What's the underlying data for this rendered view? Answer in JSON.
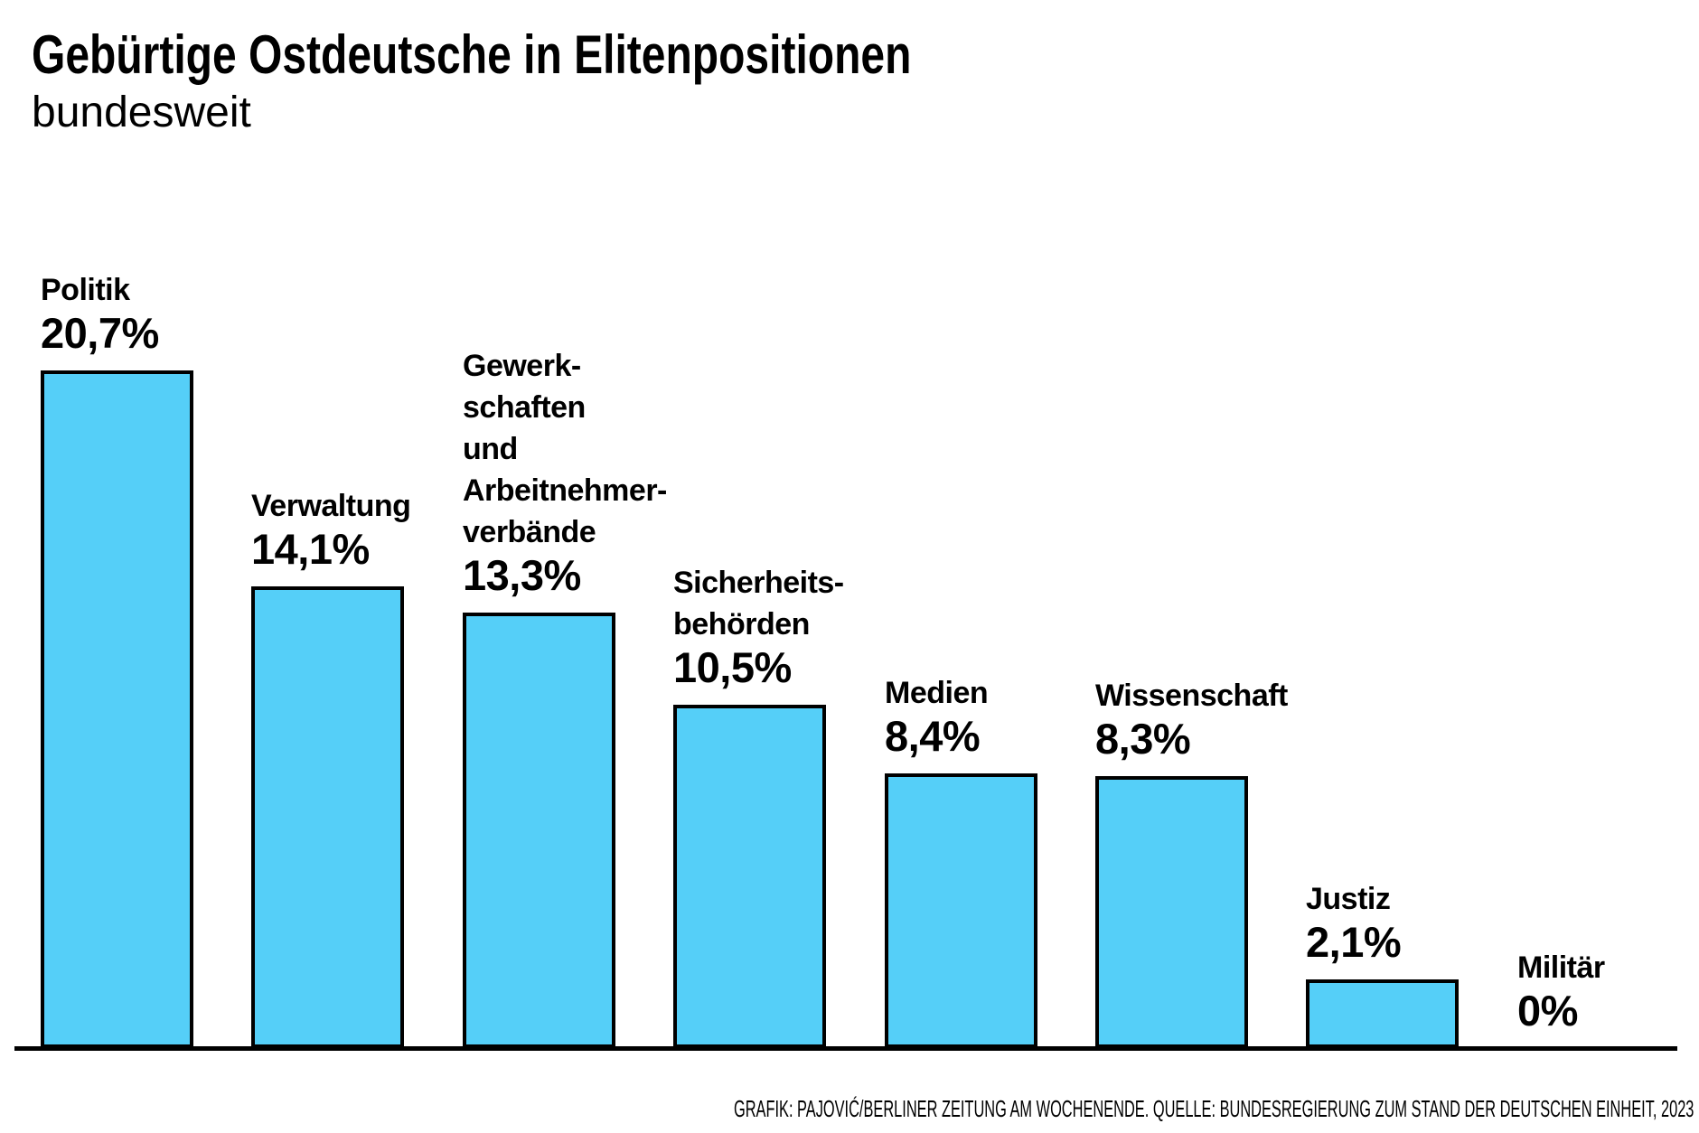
{
  "header": {
    "title": "Gebürtige Ostdeutsche in Elitenpositionen",
    "subtitle": "bundesweit"
  },
  "credit": "GRAFIK: PAJOVIĆ/BERLINER ZEITUNG AM WOCHENENDE. QUELLE: BUNDESREGIERUNG ZUM STAND DER DEUTSCHEN EINHEIT, 2023",
  "chart_data": {
    "type": "bar",
    "title": "Gebürtige Ostdeutsche in Elitenpositionen",
    "subtitle": "bundesweit",
    "xlabel": "",
    "ylabel": "",
    "unit": "%",
    "ylim": [
      0,
      20.7
    ],
    "grid": false,
    "legend": "none",
    "bar_color": "#55CFF8",
    "bar_border_color": "#000000",
    "categories": [
      "Politik",
      "Verwaltung",
      "Gewerkschaften und Arbeitnehmerverbände",
      "Sicherheitsbehörden",
      "Medien",
      "Wissenschaft",
      "Justiz",
      "Militär"
    ],
    "values": [
      20.7,
      14.1,
      13.3,
      10.5,
      8.4,
      8.3,
      2.1,
      0
    ],
    "bars": [
      {
        "name": "Politik",
        "label_lines": [
          "Politik"
        ],
        "value": 20.7,
        "value_label": "20,7%"
      },
      {
        "name": "Verwaltung",
        "label_lines": [
          "Verwaltung"
        ],
        "value": 14.1,
        "value_label": "14,1%"
      },
      {
        "name": "Gewerkschaften und Arbeitnehmerverbände",
        "label_lines": [
          "Gewerk-",
          "schaften",
          "und",
          "Arbeitnehmer-",
          "verbände"
        ],
        "value": 13.3,
        "value_label": "13,3%"
      },
      {
        "name": "Sicherheitsbehörden",
        "label_lines": [
          "Sicherheits-",
          "behörden"
        ],
        "value": 10.5,
        "value_label": "10,5%"
      },
      {
        "name": "Medien",
        "label_lines": [
          "Medien"
        ],
        "value": 8.4,
        "value_label": "8,4%"
      },
      {
        "name": "Wissenschaft",
        "label_lines": [
          "Wissenschaft"
        ],
        "value": 8.3,
        "value_label": "8,3%"
      },
      {
        "name": "Justiz",
        "label_lines": [
          "Justiz"
        ],
        "value": 2.1,
        "value_label": "2,1%"
      },
      {
        "name": "Militär",
        "label_lines": [
          "Militär"
        ],
        "value": 0,
        "value_label": "0%"
      }
    ]
  }
}
